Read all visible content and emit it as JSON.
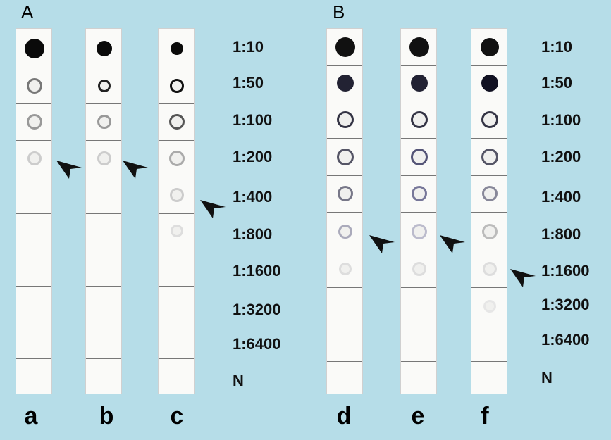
{
  "panels": [
    "A",
    "B"
  ],
  "dilutions": [
    "1:10",
    "1:50",
    "1:100",
    "1:200",
    "1:400",
    "1:800",
    "1:1600",
    "1:3200",
    "1:6400",
    "N"
  ],
  "lanes": [
    "a",
    "b",
    "c",
    "d",
    "e",
    "f"
  ],
  "colors": {
    "background": "#b6dde8",
    "strip": "#fafaf8"
  },
  "icons": {
    "arrow": "arrowhead-pointer-icon"
  }
}
